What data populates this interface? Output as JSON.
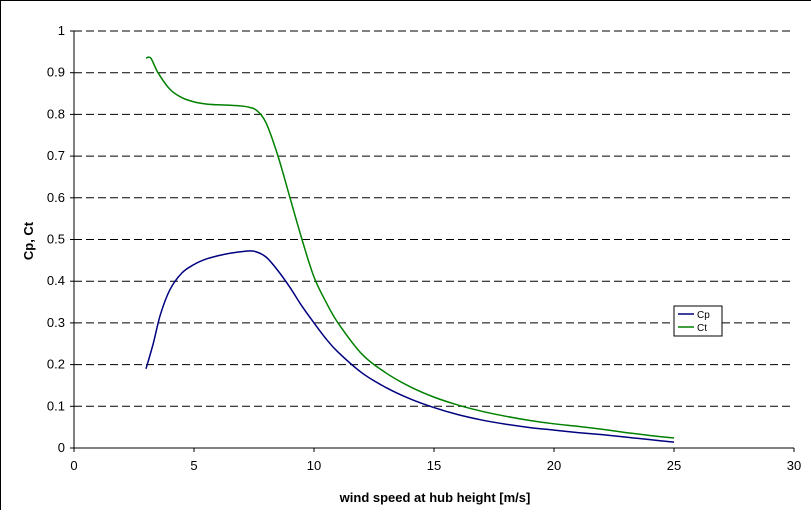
{
  "chart_data": {
    "type": "line",
    "title": "",
    "xlabel": "wind speed at hub height [m/s]",
    "ylabel": "Cp, Ct",
    "xlim": [
      0,
      30
    ],
    "ylim": [
      0,
      1
    ],
    "xticks": [
      "0",
      "5",
      "10",
      "15",
      "20",
      "25",
      "30"
    ],
    "yticks": [
      "0",
      "0.1",
      "0.2",
      "0.3",
      "0.4",
      "0.5",
      "0.6",
      "0.7",
      "0.8",
      "0.9",
      "1"
    ],
    "grid": "horizontal dashed",
    "legend_position": "right",
    "series": [
      {
        "name": "Cp",
        "color": "#000080",
        "x": [
          3,
          3.3,
          3.6,
          4,
          4.5,
          5,
          5.5,
          6,
          6.5,
          7,
          7.5,
          8,
          8.5,
          9,
          9.5,
          10,
          10.5,
          11,
          12,
          13,
          14,
          15,
          16,
          17,
          18,
          19,
          20,
          21,
          22,
          23,
          24,
          25
        ],
        "y": [
          0.19,
          0.25,
          0.32,
          0.38,
          0.42,
          0.44,
          0.453,
          0.461,
          0.467,
          0.471,
          0.472,
          0.458,
          0.425,
          0.385,
          0.34,
          0.3,
          0.262,
          0.23,
          0.18,
          0.145,
          0.118,
          0.097,
          0.08,
          0.067,
          0.057,
          0.049,
          0.043,
          0.037,
          0.032,
          0.026,
          0.02,
          0.014
        ]
      },
      {
        "name": "Ct",
        "color": "#008000",
        "x": [
          3,
          3.2,
          3.5,
          4,
          4.5,
          5,
          5.5,
          6,
          6.5,
          7,
          7.3,
          7.6,
          8,
          8.5,
          9,
          9.5,
          10,
          10.5,
          11,
          12,
          13,
          14,
          15,
          16,
          17,
          18,
          19,
          20,
          21,
          22,
          23,
          24,
          25
        ],
        "y": [
          0.935,
          0.935,
          0.9,
          0.86,
          0.84,
          0.83,
          0.825,
          0.823,
          0.822,
          0.82,
          0.817,
          0.81,
          0.78,
          0.7,
          0.6,
          0.5,
          0.41,
          0.35,
          0.3,
          0.225,
          0.18,
          0.147,
          0.122,
          0.103,
          0.088,
          0.076,
          0.066,
          0.058,
          0.052,
          0.045,
          0.037,
          0.03,
          0.024
        ]
      }
    ]
  }
}
